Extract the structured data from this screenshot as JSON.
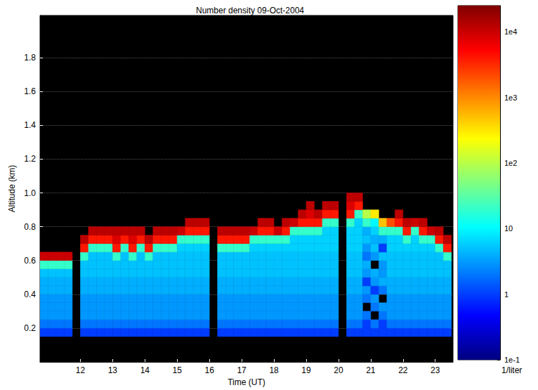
{
  "chart_data": {
    "type": "heatmap",
    "title": "Number density 09-Oct-2004",
    "x_label": "Time (UT)",
    "y_label": "Altitude (km)",
    "xlim": [
      10.75,
      23.55
    ],
    "xticks": [
      12,
      13,
      14,
      15,
      16,
      17,
      18,
      19,
      20,
      21,
      22,
      23
    ],
    "ylim": [
      0,
      2.05
    ],
    "yticks": [
      0.2,
      0.4,
      0.6,
      0.8,
      {
        "value": 1,
        "label": "1.0"
      },
      1.2,
      1.4,
      1.6,
      1.8
    ],
    "grid": true,
    "colorbar": {
      "label": "1/liter",
      "range": [
        0.1,
        25000
      ],
      "ticks": [
        {
          "value": 0.1,
          "label": "1e-1"
        },
        1,
        10,
        {
          "value": 100,
          "label": "1e2"
        },
        {
          "value": 1000,
          "label": "1e3"
        },
        {
          "value": 10000,
          "label": "1e4"
        }
      ],
      "log": true
    },
    "cells": {
      "time": [
        10.75,
        11,
        11.25,
        11.5,
        11.75,
        12,
        12.25,
        12.5,
        12.75,
        13,
        13.25,
        13.5,
        13.75,
        14,
        14.25,
        14.5,
        14.75,
        15,
        15.25,
        15.5,
        15.75,
        16,
        16.25,
        16.5,
        16.75,
        17,
        17.25,
        17.5,
        17.75,
        18,
        18.25,
        18.5,
        18.75,
        19,
        19.25,
        19.5,
        19.75,
        20,
        20.25,
        20.5,
        20.75,
        21,
        21.25,
        21.5,
        21.75,
        22,
        22.25,
        22.5,
        22.75,
        23,
        23.25
      ],
      "altitude": [
        0.15,
        0.2,
        0.25,
        0.3,
        0.35,
        0.4,
        0.45,
        0.5,
        0.55,
        0.6,
        0.65,
        0.7,
        0.75,
        0.8,
        0.85,
        0.9,
        0.95,
        1,
        1.05
      ],
      "density": [
        [
          1,
          2,
          3,
          3,
          3,
          4,
          4,
          5,
          20,
          10000,
          null,
          null,
          null,
          null,
          null,
          null,
          null,
          null,
          null
        ],
        [
          1,
          2,
          3,
          3,
          3,
          4,
          4,
          5,
          20,
          10000,
          null,
          null,
          null,
          null,
          null,
          null,
          null,
          null,
          null
        ],
        [
          1,
          2,
          3,
          3,
          3,
          4,
          4,
          5,
          20,
          10000,
          null,
          null,
          null,
          null,
          null,
          null,
          null,
          null,
          null
        ],
        [
          1,
          2,
          3,
          3,
          3,
          4,
          4,
          5,
          20,
          10000,
          null,
          null,
          null,
          null,
          null,
          null,
          null,
          null,
          null
        ],
        [
          null,
          null,
          null,
          null,
          null,
          null,
          null,
          null,
          null,
          null,
          null,
          null,
          null,
          null,
          null,
          null,
          null,
          null,
          null
        ],
        [
          1,
          2,
          3,
          3,
          3,
          4,
          4,
          5,
          5,
          20,
          4000,
          12000,
          null,
          null,
          null,
          null,
          null,
          null,
          null
        ],
        [
          1,
          2,
          3,
          3,
          3,
          4,
          4,
          5,
          5,
          5,
          20,
          4000,
          12000,
          null,
          null,
          null,
          null,
          null,
          null
        ],
        [
          1,
          2,
          3,
          3,
          3,
          4,
          4,
          5,
          5,
          5,
          20,
          4000,
          12000,
          null,
          null,
          null,
          null,
          null,
          null
        ],
        [
          1,
          2,
          3,
          3,
          3,
          4,
          4,
          5,
          5,
          5,
          20,
          4000,
          12000,
          null,
          null,
          null,
          null,
          null,
          null
        ],
        [
          1,
          2,
          3,
          3,
          3,
          4,
          4,
          5,
          5,
          20,
          4000,
          8000,
          12000,
          null,
          null,
          null,
          null,
          null,
          null
        ],
        [
          1,
          2,
          3,
          3,
          3,
          4,
          4,
          5,
          5,
          5,
          20,
          4000,
          12000,
          null,
          null,
          null,
          null,
          null,
          null
        ],
        [
          1,
          2,
          3,
          3,
          3,
          4,
          4,
          5,
          5,
          20,
          4000,
          8000,
          12000,
          null,
          null,
          null,
          null,
          null,
          null
        ],
        [
          1,
          2,
          3,
          3,
          3,
          4,
          4,
          5,
          5,
          5,
          20,
          4000,
          12000,
          null,
          null,
          null,
          null,
          null,
          null
        ],
        [
          1,
          2,
          3,
          3,
          3,
          4,
          4,
          5,
          5,
          20,
          4000,
          12000,
          null,
          null,
          null,
          null,
          null,
          null,
          null
        ],
        [
          1,
          2,
          3,
          3,
          3,
          4,
          4,
          5,
          5,
          5,
          20,
          4000,
          12000,
          null,
          null,
          null,
          null,
          null,
          null
        ],
        [
          1,
          2,
          3,
          3,
          3,
          4,
          4,
          5,
          5,
          5,
          20,
          4000,
          12000,
          null,
          null,
          null,
          null,
          null,
          null
        ],
        [
          1,
          2,
          3,
          3,
          3,
          4,
          4,
          5,
          5,
          5,
          20,
          4000,
          12000,
          null,
          null,
          null,
          null,
          null,
          null
        ],
        [
          1,
          2,
          3,
          3,
          3,
          4,
          4,
          5,
          5,
          5,
          6,
          20,
          10000,
          null,
          null,
          null,
          null,
          null,
          null
        ],
        [
          1,
          2,
          3,
          3,
          3,
          4,
          4,
          5,
          5,
          5,
          6,
          20,
          4000,
          12000,
          null,
          null,
          null,
          null,
          null
        ],
        [
          1,
          2,
          3,
          3,
          3,
          4,
          4,
          5,
          5,
          5,
          6,
          20,
          4000,
          12000,
          null,
          null,
          null,
          null,
          null
        ],
        [
          1,
          2,
          3,
          3,
          3,
          4,
          4,
          5,
          5,
          5,
          6,
          20,
          4000,
          12000,
          null,
          null,
          null,
          null,
          null
        ],
        [
          null,
          null,
          null,
          null,
          null,
          null,
          null,
          null,
          null,
          null,
          null,
          null,
          null,
          null,
          null,
          null,
          null,
          null,
          null
        ],
        [
          1,
          2,
          3,
          3,
          3,
          4,
          4,
          5,
          5,
          5,
          20,
          4000,
          12000,
          null,
          null,
          null,
          null,
          null,
          null
        ],
        [
          1,
          2,
          3,
          3,
          3,
          4,
          4,
          5,
          5,
          5,
          20,
          4000,
          12000,
          null,
          null,
          null,
          null,
          null,
          null
        ],
        [
          1,
          2,
          3,
          3,
          3,
          4,
          4,
          5,
          5,
          5,
          20,
          4000,
          12000,
          null,
          null,
          null,
          null,
          null,
          null
        ],
        [
          1,
          2,
          3,
          3,
          3,
          4,
          4,
          5,
          5,
          5,
          20,
          4000,
          12000,
          null,
          null,
          null,
          null,
          null,
          null
        ],
        [
          1,
          2,
          3,
          3,
          3,
          4,
          4,
          5,
          5,
          5,
          6,
          20,
          10000,
          null,
          null,
          null,
          null,
          null,
          null
        ],
        [
          1,
          2,
          3,
          3,
          3,
          4,
          4,
          5,
          5,
          5,
          6,
          20,
          4000,
          12000,
          null,
          null,
          null,
          null,
          null
        ],
        [
          1,
          2,
          3,
          3,
          3,
          4,
          4,
          5,
          5,
          5,
          6,
          20,
          4000,
          12000,
          null,
          null,
          null,
          null,
          null
        ],
        [
          1,
          2,
          3,
          3,
          3,
          4,
          4,
          5,
          5,
          5,
          6,
          20,
          10000,
          null,
          null,
          null,
          null,
          null,
          null
        ],
        [
          1,
          2,
          3,
          3,
          3,
          4,
          4,
          5,
          5,
          5,
          6,
          20,
          4000,
          12000,
          null,
          null,
          null,
          null,
          null
        ],
        [
          1,
          2,
          3,
          3,
          3,
          4,
          4,
          5,
          5,
          5,
          6,
          6,
          20,
          10000,
          null,
          null,
          null,
          null,
          null
        ],
        [
          1,
          2,
          3,
          3,
          3,
          4,
          4,
          5,
          5,
          5,
          6,
          6,
          20,
          4000,
          12000,
          null,
          null,
          null,
          null
        ],
        [
          1,
          2,
          3,
          3,
          3,
          4,
          4,
          5,
          5,
          5,
          6,
          6,
          20,
          4000,
          8000,
          12000,
          null,
          null,
          null
        ],
        [
          1,
          2,
          3,
          3,
          3,
          4,
          4,
          5,
          5,
          5,
          6,
          6,
          20,
          4000,
          12000,
          null,
          null,
          null,
          null
        ],
        [
          1,
          2,
          3,
          3,
          3,
          4,
          4,
          5,
          5,
          5,
          6,
          6,
          6,
          20,
          4000,
          12000,
          null,
          null,
          null
        ],
        [
          1,
          2,
          3,
          3,
          3,
          4,
          4,
          5,
          5,
          5,
          6,
          6,
          6,
          20,
          4000,
          12000,
          null,
          null,
          null
        ],
        [
          null,
          null,
          null,
          null,
          null,
          null,
          null,
          null,
          null,
          null,
          null,
          null,
          null,
          null,
          null,
          null,
          null,
          null,
          null
        ],
        [
          1,
          2,
          3,
          3,
          3,
          4,
          4,
          5,
          5,
          5,
          6,
          6,
          6,
          20,
          4000,
          8000,
          12000,
          null,
          null
        ],
        [
          1,
          2,
          3,
          3,
          3,
          4,
          4,
          5,
          5,
          5,
          6,
          6,
          6,
          6,
          20,
          4000,
          12000,
          null,
          null
        ],
        [
          1,
          1,
          2,
          null,
          2,
          3,
          1,
          3,
          4,
          2,
          3,
          5,
          4,
          20,
          100,
          null,
          null,
          null,
          null
        ],
        [
          1,
          2,
          null,
          2,
          3,
          1,
          3,
          4,
          null,
          3,
          5,
          4,
          6,
          10,
          300,
          null,
          null,
          null,
          null
        ],
        [
          1,
          1,
          2,
          3,
          null,
          2,
          4,
          3,
          3,
          5,
          1,
          4,
          20,
          500,
          null,
          null,
          null,
          null,
          null
        ],
        [
          1,
          2,
          3,
          3,
          3,
          4,
          4,
          5,
          5,
          5,
          6,
          6,
          20,
          2000,
          null,
          null,
          null,
          null,
          null
        ],
        [
          1,
          2,
          3,
          3,
          3,
          4,
          4,
          5,
          5,
          5,
          6,
          6,
          20,
          4000,
          12000,
          null,
          null,
          null,
          null
        ],
        [
          1,
          2,
          3,
          3,
          3,
          4,
          4,
          5,
          5,
          5,
          6,
          20,
          4000,
          12000,
          null,
          null,
          null,
          null,
          null
        ],
        [
          1,
          2,
          3,
          3,
          3,
          4,
          4,
          5,
          5,
          5,
          6,
          6,
          20,
          10000,
          null,
          null,
          null,
          null,
          null
        ],
        [
          1,
          2,
          3,
          3,
          3,
          4,
          4,
          5,
          5,
          5,
          6,
          20,
          4000,
          12000,
          null,
          null,
          null,
          null,
          null
        ],
        [
          1,
          2,
          3,
          3,
          3,
          4,
          4,
          5,
          5,
          5,
          6,
          20,
          10000,
          null,
          null,
          null,
          null,
          null,
          null
        ],
        [
          1,
          2,
          3,
          3,
          3,
          4,
          4,
          5,
          5,
          5,
          20,
          4000,
          12000,
          null,
          null,
          null,
          null,
          null,
          null
        ],
        [
          1,
          2,
          3,
          3,
          3,
          4,
          4,
          5,
          5,
          20,
          4000,
          12000,
          null,
          null,
          null,
          null,
          null,
          null,
          null
        ]
      ]
    }
  }
}
